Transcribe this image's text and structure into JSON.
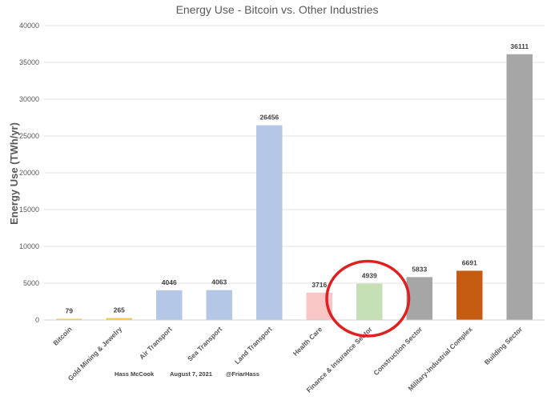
{
  "chart_data": {
    "type": "bar",
    "title": "Energy Use - Bitcoin vs. Other Industries",
    "ylabel": "Energy Use (TWh/yr)",
    "xlabel": "",
    "ylim": [
      0,
      40000
    ],
    "yticks": [
      0,
      5000,
      10000,
      15000,
      20000,
      25000,
      30000,
      35000,
      40000
    ],
    "grid": true,
    "categories": [
      "Bitcoin",
      "Gold Mining & Jewelry",
      "Air Transport",
      "Sea Transport",
      "Land Transport",
      "Health Care",
      "Finance & Insurance Sector",
      "Construction Sector",
      "Military-Industrial Complex",
      "Building Sector"
    ],
    "values": [
      79,
      265,
      4046,
      4063,
      26456,
      3716,
      4939,
      5833,
      6691,
      36111
    ],
    "colors": [
      "#f2c94c",
      "#f2c94c",
      "#b4c7e7",
      "#b4c7e7",
      "#b4c7e7",
      "#f9c6c6",
      "#c5e0b4",
      "#a6a6a6",
      "#c55a11",
      "#a6a6a6"
    ],
    "highlight_color": "#e02020",
    "annotations": [
      {
        "type": "ellipse",
        "category": "Finance & Insurance Sector"
      }
    ]
  },
  "credits": {
    "author": "Hass McCook",
    "date": "August 7, 2021",
    "handle": "@FriarHass"
  }
}
